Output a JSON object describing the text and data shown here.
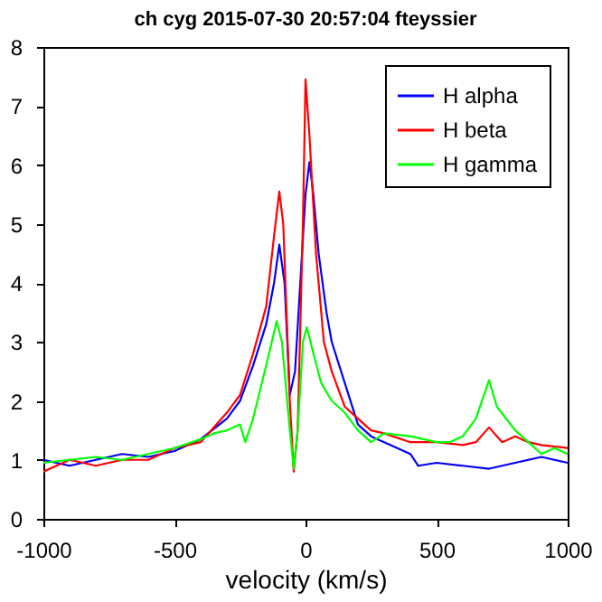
{
  "chart_data": {
    "type": "line",
    "title": "ch cyg 2015-07-30    20:57:04  fteyssier",
    "xlabel": "velocity (km/s)",
    "xlim": [
      -1000,
      1000
    ],
    "xticks": [
      -1000,
      -500,
      0,
      500,
      1000
    ],
    "ylim": [
      0,
      8
    ],
    "yticks": [
      0,
      1,
      2,
      3,
      4,
      5,
      6,
      7,
      8
    ],
    "grid": false,
    "legend": "top right",
    "line_style": "solid",
    "marker": "none",
    "series": [
      {
        "name": "H alpha",
        "color": "#0000ff",
        "x": [
          -1000,
          -900,
          -800,
          -700,
          -600,
          -500,
          -400,
          -300,
          -250,
          -200,
          -150,
          -120,
          -100,
          -80,
          -60,
          -40,
          -20,
          0,
          15,
          30,
          50,
          80,
          100,
          150,
          200,
          250,
          300,
          350,
          400,
          430,
          500,
          600,
          700,
          800,
          900,
          1000
        ],
        "values": [
          1.0,
          0.9,
          1.0,
          1.1,
          1.05,
          1.15,
          1.35,
          1.7,
          2.0,
          2.6,
          3.3,
          4.0,
          4.65,
          4.0,
          2.1,
          2.5,
          4.0,
          5.5,
          6.05,
          5.5,
          4.5,
          3.5,
          3.0,
          2.3,
          1.6,
          1.4,
          1.3,
          1.2,
          1.1,
          0.9,
          0.95,
          0.9,
          0.85,
          0.95,
          1.05,
          0.95
        ]
      },
      {
        "name": "H beta",
        "color": "#ff0000",
        "x": [
          -1000,
          -900,
          -800,
          -700,
          -600,
          -500,
          -400,
          -300,
          -250,
          -200,
          -150,
          -120,
          -100,
          -85,
          -60,
          -45,
          -30,
          -10,
          0,
          15,
          40,
          70,
          100,
          150,
          200,
          250,
          300,
          400,
          500,
          600,
          650,
          700,
          750,
          800,
          850,
          900,
          1000
        ],
        "values": [
          0.8,
          1.0,
          0.9,
          1.0,
          1.0,
          1.2,
          1.3,
          1.8,
          2.1,
          2.8,
          3.6,
          4.8,
          5.55,
          5.0,
          2.0,
          0.8,
          1.5,
          5.0,
          7.45,
          6.5,
          4.5,
          3.0,
          2.5,
          1.9,
          1.7,
          1.5,
          1.45,
          1.3,
          1.3,
          1.25,
          1.3,
          1.55,
          1.3,
          1.4,
          1.3,
          1.25,
          1.2
        ]
      },
      {
        "name": "H gamma",
        "color": "#00ff00",
        "x": [
          -1000,
          -900,
          -800,
          -700,
          -600,
          -500,
          -400,
          -350,
          -300,
          -250,
          -230,
          -200,
          -150,
          -110,
          -90,
          -60,
          -45,
          -30,
          -10,
          5,
          30,
          60,
          100,
          150,
          200,
          250,
          300,
          400,
          500,
          550,
          600,
          650,
          700,
          730,
          800,
          850,
          900,
          950,
          1000
        ],
        "values": [
          0.95,
          1.0,
          1.05,
          1.0,
          1.1,
          1.2,
          1.35,
          1.45,
          1.5,
          1.6,
          1.3,
          1.7,
          2.6,
          3.35,
          3.0,
          1.5,
          0.85,
          1.5,
          3.0,
          3.25,
          2.8,
          2.3,
          2.0,
          1.8,
          1.5,
          1.3,
          1.45,
          1.4,
          1.3,
          1.3,
          1.4,
          1.7,
          2.35,
          1.9,
          1.5,
          1.3,
          1.1,
          1.2,
          1.1
        ]
      }
    ]
  }
}
